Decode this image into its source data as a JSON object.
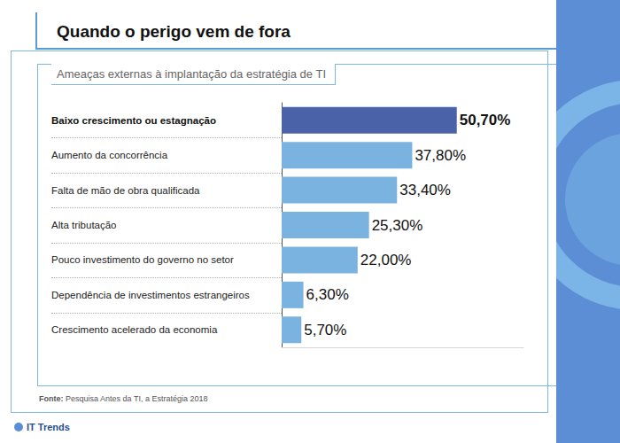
{
  "chart_data": {
    "type": "bar",
    "orientation": "horizontal",
    "title": "Quando o perigo vem de fora",
    "subtitle": "Ameaças externas à implantação da estratégia de TI",
    "categories": [
      "Baixo crescimento ou estagnação",
      "Aumento da concorrência",
      "Falta de mão de obra qualificada",
      "Alta tributação",
      "Pouco investimento do governo no setor",
      "Dependência de investimentos estrangeiros",
      "Crescimento acelerado da economia"
    ],
    "values": [
      50.7,
      37.8,
      33.4,
      25.3,
      22.0,
      6.3,
      5.7
    ],
    "value_labels": [
      "50,70%",
      "37,80%",
      "33,40%",
      "25,30%",
      "22,00%",
      "6,30%",
      "5,70%"
    ],
    "colors": [
      "#4a63a8",
      "#7ab3e0",
      "#7ab3e0",
      "#7ab3e0",
      "#7ab3e0",
      "#7ab3e0",
      "#7ab3e0"
    ],
    "xlim": [
      0,
      70
    ],
    "data_labels": true,
    "tick_labels": "y",
    "grid": false,
    "source": "Fonte: Pesquisa Antes da TI, a Estratégia 2018",
    "brand": "IT Trends"
  }
}
